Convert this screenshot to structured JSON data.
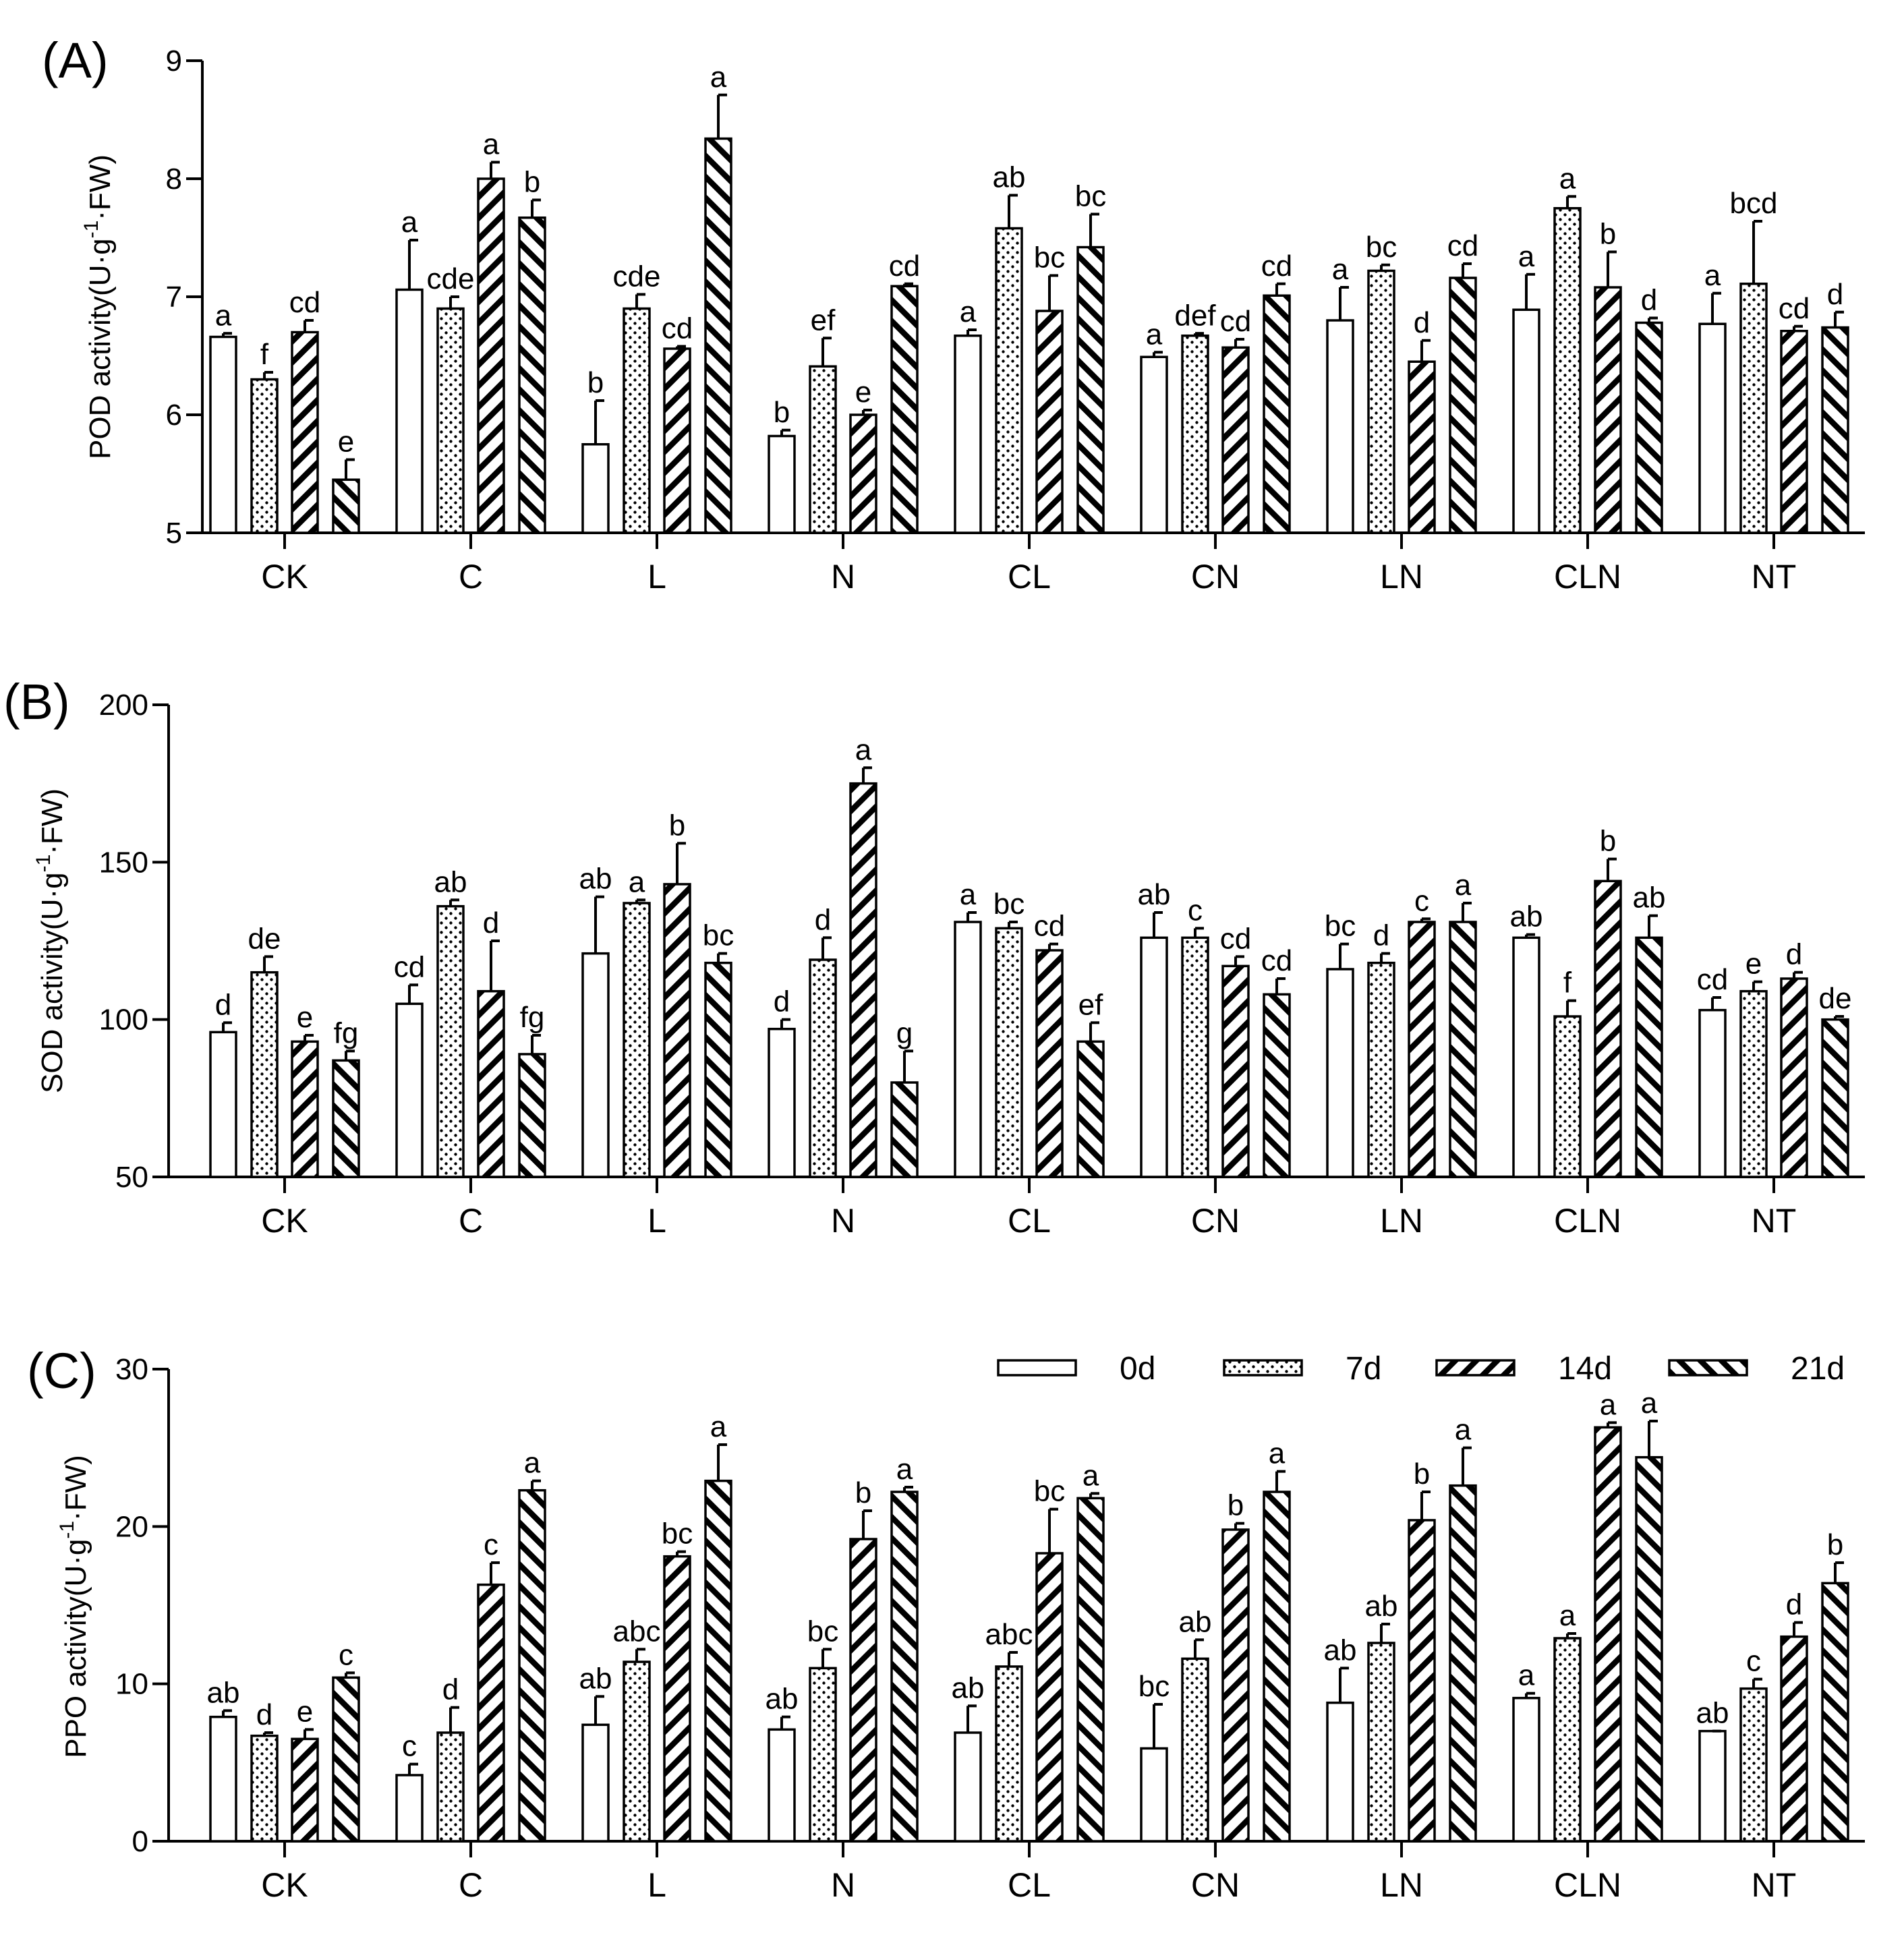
{
  "figure": {
    "legend_title": ""
  },
  "chart_data": [
    {
      "type": "bar",
      "panel_label": "(A)",
      "title": "",
      "xlabel": "",
      "ylabel": "POD activity(U·g⁻¹·FW)",
      "ylabel_parts": {
        "main": "POD activity(U·g",
        "sup": "-1",
        "tail": "·FW)"
      },
      "ylim": [
        5,
        9
      ],
      "yticks": [
        5,
        6,
        7,
        8,
        9
      ],
      "grid": false,
      "legend": false,
      "categories": [
        "CK",
        "C",
        "L",
        "N",
        "CL",
        "CN",
        "LN",
        "CLN",
        "NT"
      ],
      "series": [
        {
          "name": "0d",
          "values": [
            6.66,
            7.06,
            5.75,
            5.82,
            6.67,
            6.49,
            6.8,
            6.89,
            6.77
          ],
          "errors": [
            0.03,
            0.42,
            0.37,
            0.05,
            0.05,
            0.04,
            0.28,
            0.3,
            0.26
          ],
          "labels": [
            "a",
            "a",
            "b",
            "b",
            "a",
            "a",
            "a",
            "a",
            "a"
          ]
        },
        {
          "name": "7d",
          "values": [
            6.3,
            6.9,
            6.9,
            6.41,
            7.58,
            6.67,
            7.22,
            7.75,
            7.11
          ],
          "errors": [
            0.06,
            0.1,
            0.12,
            0.24,
            0.28,
            0.02,
            0.05,
            0.1,
            0.53
          ],
          "labels": [
            "f",
            "cde",
            "cde",
            "ef",
            "ab",
            "def",
            "bc",
            "a",
            "bcd"
          ]
        },
        {
          "name": "14d",
          "values": [
            6.7,
            8.0,
            6.56,
            6.0,
            6.88,
            6.57,
            6.45,
            7.08,
            6.71
          ],
          "errors": [
            0.1,
            0.14,
            0.02,
            0.04,
            0.3,
            0.07,
            0.18,
            0.3,
            0.04
          ],
          "labels": [
            "cd",
            "a",
            "cd",
            "e",
            "bc",
            "cd",
            "d",
            "b",
            "cd"
          ]
        },
        {
          "name": "21d",
          "values": [
            5.45,
            7.67,
            8.34,
            7.09,
            7.42,
            7.01,
            7.16,
            6.78,
            6.74
          ],
          "errors": [
            0.17,
            0.15,
            0.37,
            0.02,
            0.28,
            0.1,
            0.12,
            0.04,
            0.13
          ],
          "labels": [
            "e",
            "b",
            "a",
            "cd",
            "bc",
            "cd",
            "cd",
            "d",
            "d"
          ]
        }
      ]
    },
    {
      "type": "bar",
      "panel_label": "(B)",
      "title": "",
      "xlabel": "",
      "ylabel": "SOD activity(U·g⁻¹·FW)",
      "ylabel_parts": {
        "main": "SOD activity(U·g",
        "sup": "-1",
        "tail": "·FW)"
      },
      "ylim": [
        50,
        200
      ],
      "yticks": [
        50,
        100,
        150,
        200
      ],
      "grid": false,
      "legend": false,
      "categories": [
        "CK",
        "C",
        "L",
        "N",
        "CL",
        "CN",
        "LN",
        "CLN",
        "NT"
      ],
      "series": [
        {
          "name": "0d",
          "values": [
            96,
            105,
            121,
            97,
            131,
            126,
            116,
            126,
            103
          ],
          "errors": [
            3,
            6,
            18,
            3,
            3,
            8,
            8,
            1,
            4
          ],
          "labels": [
            "d",
            "cd",
            "ab",
            "d",
            "a",
            "ab",
            "bc",
            "ab",
            "cd"
          ]
        },
        {
          "name": "7d",
          "values": [
            115,
            136,
            137,
            119,
            129,
            126,
            118,
            101,
            109
          ],
          "errors": [
            5,
            2,
            1,
            7,
            2,
            3,
            3,
            5,
            3
          ],
          "labels": [
            "de",
            "ab",
            "a",
            "d",
            "bc",
            "c",
            "d",
            "f",
            "e"
          ]
        },
        {
          "name": "14d",
          "values": [
            93,
            109,
            143,
            175,
            122,
            117,
            131,
            144,
            113
          ],
          "errors": [
            2,
            16,
            13,
            5,
            2,
            3,
            1,
            7,
            2
          ],
          "labels": [
            "e",
            "d",
            "b",
            "a",
            "cd",
            "cd",
            "c",
            "b",
            "d"
          ]
        },
        {
          "name": "21d",
          "values": [
            87,
            89,
            118,
            80,
            93,
            108,
            131,
            126,
            100
          ],
          "errors": [
            3,
            6,
            3,
            10,
            6,
            5,
            6,
            7,
            1
          ],
          "labels": [
            "fg",
            "fg",
            "bc",
            "g",
            "ef",
            "cd",
            "a",
            "ab",
            "de"
          ]
        }
      ]
    },
    {
      "type": "bar",
      "panel_label": "(C)",
      "title": "",
      "xlabel": "",
      "ylabel": "PPO activity(U·g⁻¹·FW)",
      "ylabel_parts": {
        "main": "PPO activity(U·g",
        "sup": "-1",
        "tail": "·FW)"
      },
      "ylim": [
        0,
        30
      ],
      "yticks": [
        0,
        10,
        20,
        30
      ],
      "grid": false,
      "legend": true,
      "legend_placement": "top-right",
      "categories": [
        "CK",
        "C",
        "L",
        "N",
        "CL",
        "CN",
        "LN",
        "CLN",
        "NT"
      ],
      "series": [
        {
          "name": "0d",
          "values": [
            7.9,
            4.2,
            7.4,
            7.1,
            6.9,
            5.9,
            8.8,
            9.1,
            7.0
          ],
          "errors": [
            0.4,
            0.7,
            1.8,
            0.8,
            1.7,
            2.8,
            2.2,
            0.3,
            0.0
          ],
          "labels": [
            "ab",
            "c",
            "ab",
            "ab",
            "ab",
            "bc",
            "ab",
            "a",
            "ab"
          ]
        },
        {
          "name": "7d",
          "values": [
            6.7,
            6.9,
            11.4,
            11.0,
            11.1,
            11.6,
            12.6,
            12.9,
            9.7
          ],
          "errors": [
            0.2,
            1.6,
            0.8,
            1.2,
            0.9,
            1.2,
            1.2,
            0.3,
            0.6
          ],
          "labels": [
            "d",
            "d",
            "abc",
            "bc",
            "abc",
            "ab",
            "ab",
            "a",
            "c"
          ]
        },
        {
          "name": "14d",
          "values": [
            6.5,
            16.3,
            18.1,
            19.2,
            18.3,
            19.8,
            20.4,
            26.3,
            13.0
          ],
          "errors": [
            0.6,
            1.4,
            0.3,
            1.8,
            2.8,
            0.4,
            1.8,
            0.3,
            0.9
          ],
          "labels": [
            "e",
            "c",
            "bc",
            "b",
            "bc",
            "b",
            "b",
            "a",
            "d"
          ]
        },
        {
          "name": "21d",
          "values": [
            10.4,
            22.3,
            22.9,
            22.2,
            21.8,
            22.2,
            22.6,
            24.4,
            16.4
          ],
          "errors": [
            0.3,
            0.6,
            2.3,
            0.3,
            0.3,
            1.3,
            2.4,
            2.3,
            1.3
          ],
          "labels": [
            "c",
            "a",
            "a",
            "a",
            "a",
            "a",
            "a",
            "a",
            "b"
          ]
        }
      ]
    }
  ]
}
